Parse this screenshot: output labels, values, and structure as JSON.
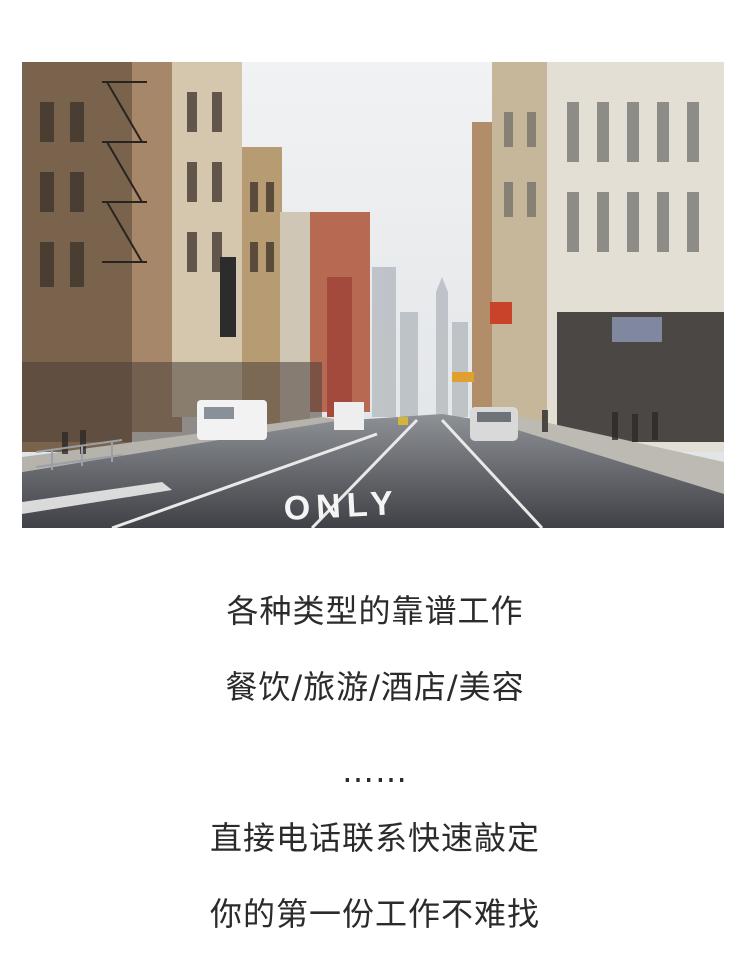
{
  "photo": {
    "road_marking": "ONLY"
  },
  "captions": {
    "line1": "各种类型的靠谱工作",
    "line2": "餐饮/旅游/酒店/美容",
    "line3": "……",
    "line4": "直接电话联系快速敲定",
    "line5": "你的第一份工作不难找"
  }
}
